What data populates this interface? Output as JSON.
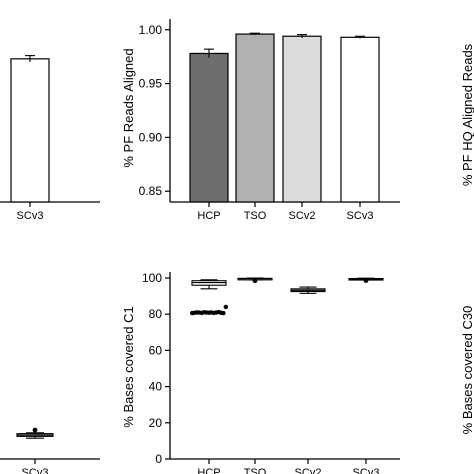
{
  "chart_data": [
    {
      "type": "bar",
      "panel": "left-top",
      "categories": [
        "SCv3"
      ],
      "values": [
        0.973
      ],
      "errors": [
        0.003
      ],
      "colors": [
        "#ffffff"
      ],
      "ylabel": "",
      "xlabel": "",
      "ylim": [
        0.84,
        1.01
      ]
    },
    {
      "type": "bar",
      "panel": "middle-top",
      "categories": [
        "HCP",
        "TSO",
        "SCv2",
        "SCv3"
      ],
      "values": [
        0.978,
        0.996,
        0.994,
        0.993
      ],
      "errors": [
        0.004,
        0.0008,
        0.0015,
        0.001
      ],
      "colors": [
        "#6e6e6e",
        "#b0b0b0",
        "#dcdcdc",
        "#ffffff"
      ],
      "ylabel": "% PF Reads Aligned",
      "xlabel": "",
      "ylim": [
        0.84,
        1.01
      ],
      "yticks": [
        "0.85",
        "0.90",
        "0.95",
        "1.00"
      ],
      "ytick_values": [
        0.85,
        0.9,
        0.95,
        1.0
      ],
      "grid": false
    },
    {
      "type": "bar",
      "panel": "right-top",
      "categories": [],
      "values": [],
      "ylabel": "% PF HQ Aligned Reads"
    },
    {
      "type": "box",
      "panel": "left-bottom",
      "categories": [
        "SCv3"
      ],
      "boxes": [
        {
          "min": 11.5,
          "q1": 12.5,
          "median": 13.2,
          "q3": 14,
          "max": 14.5,
          "outliers": [
            16
          ]
        }
      ],
      "ylim": [
        0,
        100
      ]
    },
    {
      "type": "box",
      "panel": "middle-bottom",
      "categories": [
        "HCP",
        "TSO",
        "SCv2",
        "SCv3"
      ],
      "boxes": [
        {
          "min": 94,
          "q1": 96,
          "median": 97.5,
          "q3": 98.5,
          "max": 99,
          "outliers": []
        },
        {
          "min": 99,
          "q1": 99.3,
          "median": 99.6,
          "q3": 99.8,
          "max": 100,
          "outliers": [
            98.5
          ]
        },
        {
          "min": 91.5,
          "q1": 92.5,
          "median": 93.2,
          "q3": 94,
          "max": 95,
          "outliers": []
        },
        {
          "min": 99,
          "q1": 99.3,
          "median": 99.5,
          "q3": 99.7,
          "max": 99.9,
          "outliers": [
            98.6
          ]
        }
      ],
      "points": [
        {
          "category": "HCP",
          "values": [
            80.6,
            80.8,
            81.0,
            80.9,
            80.7,
            81.1,
            80.9,
            80.8,
            81.0,
            80.7,
            80.9,
            81.2,
            80.8,
            80.6,
            84.0
          ]
        }
      ],
      "ylabel": "% Bases covered C1",
      "ylim": [
        0,
        100
      ],
      "yticks": [
        "0",
        "20",
        "40",
        "60",
        "80",
        "100"
      ],
      "ytick_values": [
        0,
        20,
        40,
        60,
        80,
        100
      ],
      "grid": false
    },
    {
      "type": "box",
      "panel": "right-bottom",
      "categories": [],
      "ylabel": "% Bases covered C30"
    }
  ]
}
